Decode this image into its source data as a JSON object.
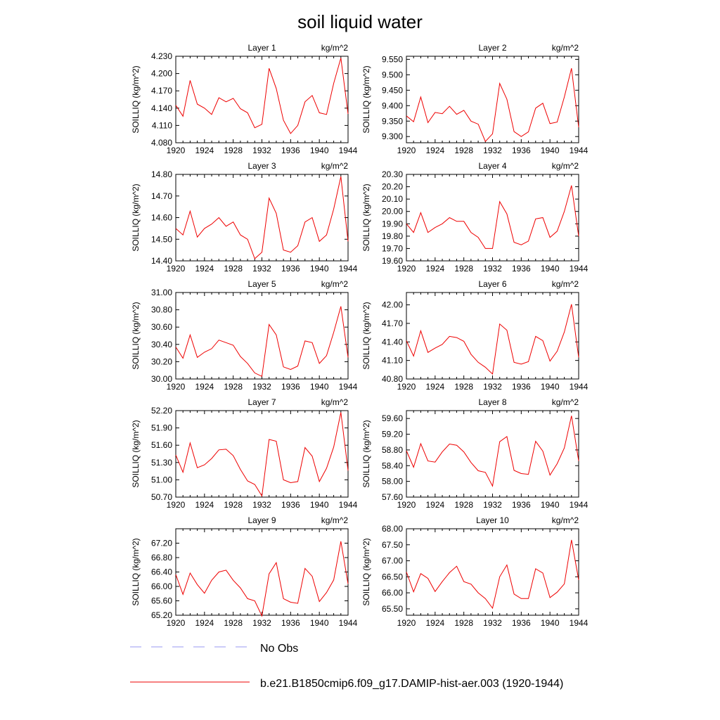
{
  "figure_title": "soil liquid water",
  "legend": {
    "entries": [
      {
        "label": "No Obs",
        "color": "#9a9af0",
        "style": "dashed"
      },
      {
        "label": "b.e21.B1850cmip6.f09_g17.DAMIP-hist-aer.003 (1920-1944)",
        "color": "#ee0000",
        "style": "solid"
      }
    ]
  },
  "chart_data": [
    {
      "type": "line",
      "title": "Layer 1",
      "units": "kg/m^2",
      "ylabel": "SOILLIQ  (kg/m^2)",
      "xlim": [
        1920,
        1944
      ],
      "xticks": [
        1920,
        1924,
        1928,
        1932,
        1936,
        1940,
        1944
      ],
      "ylim": [
        4.08,
        4.23
      ],
      "yticks": [
        "4.080",
        "4.110",
        "4.140",
        "4.170",
        "4.200",
        "4.230"
      ],
      "x": [
        1920,
        1921,
        1922,
        1923,
        1924,
        1925,
        1926,
        1927,
        1928,
        1929,
        1930,
        1931,
        1932,
        1933,
        1934,
        1935,
        1936,
        1937,
        1938,
        1939,
        1940,
        1941,
        1942,
        1943,
        1944
      ],
      "series": [
        {
          "values": [
            4.145,
            4.126,
            4.188,
            4.147,
            4.14,
            4.129,
            4.158,
            4.151,
            4.157,
            4.139,
            4.132,
            4.106,
            4.112,
            4.209,
            4.174,
            4.119,
            4.096,
            4.11,
            4.151,
            4.162,
            4.132,
            4.129,
            4.183,
            4.227,
            4.13
          ]
        }
      ]
    },
    {
      "type": "line",
      "title": "Layer 2",
      "units": "kg/m^2",
      "ylabel": "SOILLIQ  (kg/m^2)",
      "xlim": [
        1920,
        1944
      ],
      "xticks": [
        1920,
        1924,
        1928,
        1932,
        1936,
        1940,
        1944
      ],
      "ylim": [
        9.28,
        9.56
      ],
      "yticks": [
        "9.300",
        "9.350",
        "9.400",
        "9.450",
        "9.500",
        "9.550"
      ],
      "x": [
        1920,
        1921,
        1922,
        1923,
        1924,
        1925,
        1926,
        1927,
        1928,
        1929,
        1930,
        1931,
        1932,
        1933,
        1934,
        1935,
        1936,
        1937,
        1938,
        1939,
        1940,
        1941,
        1942,
        1943,
        1944
      ],
      "series": [
        {
          "values": [
            9.367,
            9.348,
            9.428,
            9.345,
            9.378,
            9.374,
            9.398,
            9.372,
            9.385,
            9.35,
            9.34,
            9.284,
            9.309,
            9.472,
            9.421,
            9.316,
            9.3,
            9.315,
            9.392,
            9.408,
            9.342,
            9.347,
            9.428,
            9.521,
            9.33
          ]
        }
      ]
    },
    {
      "type": "line",
      "title": "Layer 3",
      "units": "kg/m^2",
      "ylabel": "SOILLIQ  (kg/m^2)",
      "xlim": [
        1920,
        1944
      ],
      "xticks": [
        1920,
        1924,
        1928,
        1932,
        1936,
        1940,
        1944
      ],
      "ylim": [
        14.4,
        14.8
      ],
      "yticks": [
        "14.40",
        "14.50",
        "14.60",
        "14.70",
        "14.80"
      ],
      "x": [
        1920,
        1921,
        1922,
        1923,
        1924,
        1925,
        1926,
        1927,
        1928,
        1929,
        1930,
        1931,
        1932,
        1933,
        1934,
        1935,
        1936,
        1937,
        1938,
        1939,
        1940,
        1941,
        1942,
        1943,
        1944
      ],
      "series": [
        {
          "values": [
            14.55,
            14.52,
            14.63,
            14.51,
            14.55,
            14.57,
            14.6,
            14.56,
            14.58,
            14.52,
            14.5,
            14.41,
            14.44,
            14.69,
            14.62,
            14.45,
            14.44,
            14.47,
            14.58,
            14.6,
            14.49,
            14.52,
            14.64,
            14.79,
            14.49
          ]
        }
      ]
    },
    {
      "type": "line",
      "title": "Layer 4",
      "units": "kg/m^2",
      "ylabel": "SOILLIQ  (kg/m^2)",
      "xlim": [
        1920,
        1944
      ],
      "xticks": [
        1920,
        1924,
        1928,
        1932,
        1936,
        1940,
        1944
      ],
      "ylim": [
        19.6,
        20.3
      ],
      "yticks": [
        "19.60",
        "19.70",
        "19.80",
        "19.90",
        "20.00",
        "20.10",
        "20.20",
        "20.30"
      ],
      "x": [
        1920,
        1921,
        1922,
        1923,
        1924,
        1925,
        1926,
        1927,
        1928,
        1929,
        1930,
        1931,
        1932,
        1933,
        1934,
        1935,
        1936,
        1937,
        1938,
        1939,
        1940,
        1941,
        1942,
        1943,
        1944
      ],
      "series": [
        {
          "values": [
            19.9,
            19.83,
            19.99,
            19.83,
            19.87,
            19.9,
            19.95,
            19.92,
            19.92,
            19.83,
            19.79,
            19.7,
            19.7,
            20.08,
            19.98,
            19.75,
            19.73,
            19.76,
            19.94,
            19.95,
            19.79,
            19.84,
            20.0,
            20.21,
            19.8
          ]
        }
      ]
    },
    {
      "type": "line",
      "title": "Layer 5",
      "units": "kg/m^2",
      "ylabel": "SOILLIQ  (kg/m^2)",
      "xlim": [
        1920,
        1944
      ],
      "xticks": [
        1920,
        1924,
        1928,
        1932,
        1936,
        1940,
        1944
      ],
      "ylim": [
        30.0,
        31.0
      ],
      "yticks": [
        "30.00",
        "30.20",
        "30.40",
        "30.60",
        "30.80",
        "31.00"
      ],
      "x": [
        1920,
        1921,
        1922,
        1923,
        1924,
        1925,
        1926,
        1927,
        1928,
        1929,
        1930,
        1931,
        1932,
        1933,
        1934,
        1935,
        1936,
        1937,
        1938,
        1939,
        1940,
        1941,
        1942,
        1943,
        1944
      ],
      "series": [
        {
          "values": [
            30.37,
            30.24,
            30.51,
            30.25,
            30.31,
            30.35,
            30.45,
            30.42,
            30.39,
            30.26,
            30.18,
            30.07,
            30.03,
            30.63,
            30.51,
            30.14,
            30.11,
            30.15,
            30.44,
            30.42,
            30.18,
            30.27,
            30.54,
            30.84,
            30.25
          ]
        }
      ]
    },
    {
      "type": "line",
      "title": "Layer 6",
      "units": "kg/m^2",
      "ylabel": "SOILLIQ  (kg/m^2)",
      "xlim": [
        1920,
        1944
      ],
      "xticks": [
        1920,
        1924,
        1928,
        1932,
        1936,
        1940,
        1944
      ],
      "ylim": [
        40.8,
        42.2
      ],
      "yticks": [
        "40.80",
        "41.10",
        "41.40",
        "41.70",
        "42.00"
      ],
      "x": [
        1920,
        1921,
        1922,
        1923,
        1924,
        1925,
        1926,
        1927,
        1928,
        1929,
        1930,
        1931,
        1932,
        1933,
        1934,
        1935,
        1936,
        1937,
        1938,
        1939,
        1940,
        1941,
        1942,
        1943,
        1944
      ],
      "series": [
        {
          "values": [
            41.42,
            41.17,
            41.58,
            41.23,
            41.3,
            41.36,
            41.49,
            41.47,
            41.41,
            41.2,
            41.07,
            40.99,
            40.88,
            41.69,
            41.59,
            41.07,
            41.04,
            41.08,
            41.49,
            41.42,
            41.09,
            41.25,
            41.56,
            42.01,
            41.15
          ]
        }
      ]
    },
    {
      "type": "line",
      "title": "Layer 7",
      "units": "kg/m^2",
      "ylabel": "SOILLIQ  (kg/m^2)",
      "xlim": [
        1920,
        1944
      ],
      "xticks": [
        1920,
        1924,
        1928,
        1932,
        1936,
        1940,
        1944
      ],
      "ylim": [
        50.7,
        52.2
      ],
      "yticks": [
        "50.70",
        "51.00",
        "51.30",
        "51.60",
        "51.90",
        "52.20"
      ],
      "x": [
        1920,
        1921,
        1922,
        1923,
        1924,
        1925,
        1926,
        1927,
        1928,
        1929,
        1930,
        1931,
        1932,
        1933,
        1934,
        1935,
        1936,
        1937,
        1938,
        1939,
        1940,
        1941,
        1942,
        1943,
        1944
      ],
      "series": [
        {
          "values": [
            51.43,
            51.13,
            51.64,
            51.21,
            51.26,
            51.37,
            51.52,
            51.53,
            51.42,
            51.18,
            50.98,
            50.92,
            50.72,
            51.7,
            51.67,
            51.0,
            50.95,
            50.97,
            51.56,
            51.41,
            50.97,
            51.2,
            51.57,
            52.17,
            51.16
          ]
        }
      ]
    },
    {
      "type": "line",
      "title": "Layer 8",
      "units": "kg/m^2",
      "ylabel": "SOILLIQ  (kg/m^2)",
      "xlim": [
        1920,
        1944
      ],
      "xticks": [
        1920,
        1924,
        1928,
        1932,
        1936,
        1940,
        1944
      ],
      "ylim": [
        57.6,
        59.8
      ],
      "yticks": [
        "57.60",
        "58.00",
        "58.40",
        "58.80",
        "59.20",
        "59.60"
      ],
      "x": [
        1920,
        1921,
        1922,
        1923,
        1924,
        1925,
        1926,
        1927,
        1928,
        1929,
        1930,
        1931,
        1932,
        1933,
        1934,
        1935,
        1936,
        1937,
        1938,
        1939,
        1940,
        1941,
        1942,
        1943,
        1944
      ],
      "series": [
        {
          "values": [
            58.78,
            58.36,
            58.96,
            58.52,
            58.49,
            58.75,
            58.95,
            58.92,
            58.75,
            58.48,
            58.27,
            58.23,
            57.88,
            59.01,
            59.14,
            58.28,
            58.2,
            58.18,
            59.02,
            58.77,
            58.16,
            58.45,
            58.85,
            59.67,
            58.52
          ]
        }
      ]
    },
    {
      "type": "line",
      "title": "Layer 9",
      "units": "kg/m^2",
      "ylabel": "SOILLIQ  (kg/m^2)",
      "xlim": [
        1920,
        1944
      ],
      "xticks": [
        1920,
        1924,
        1928,
        1932,
        1936,
        1940,
        1944
      ],
      "ylim": [
        65.2,
        67.6
      ],
      "yticks": [
        "65.20",
        "65.60",
        "66.00",
        "66.40",
        "66.80",
        "67.20"
      ],
      "x": [
        1920,
        1921,
        1922,
        1923,
        1924,
        1925,
        1926,
        1927,
        1928,
        1929,
        1930,
        1931,
        1932,
        1933,
        1934,
        1935,
        1936,
        1937,
        1938,
        1939,
        1940,
        1941,
        1942,
        1943,
        1944
      ],
      "series": [
        {
          "values": [
            66.33,
            65.78,
            66.37,
            66.05,
            65.81,
            66.17,
            66.4,
            66.45,
            66.17,
            65.96,
            65.66,
            65.6,
            65.18,
            66.35,
            66.66,
            65.66,
            65.56,
            65.53,
            66.5,
            66.28,
            65.58,
            65.83,
            66.18,
            67.25,
            66.07
          ]
        }
      ]
    },
    {
      "type": "line",
      "title": "Layer 10",
      "units": "kg/m^2",
      "ylabel": "SOILLIQ  (kg/m^2)",
      "xlim": [
        1920,
        1944
      ],
      "xticks": [
        1920,
        1924,
        1928,
        1932,
        1936,
        1940,
        1944
      ],
      "ylim": [
        65.3,
        68.0
      ],
      "yticks": [
        "65.50",
        "66.00",
        "66.50",
        "67.00",
        "67.50",
        "68.00"
      ],
      "x": [
        1920,
        1921,
        1922,
        1923,
        1924,
        1925,
        1926,
        1927,
        1928,
        1929,
        1930,
        1931,
        1932,
        1933,
        1934,
        1935,
        1936,
        1937,
        1938,
        1939,
        1940,
        1941,
        1942,
        1943,
        1944
      ],
      "series": [
        {
          "values": [
            66.65,
            66.03,
            66.6,
            66.45,
            66.04,
            66.35,
            66.63,
            66.83,
            66.35,
            66.27,
            66.0,
            65.82,
            65.52,
            66.5,
            66.87,
            65.96,
            65.82,
            65.82,
            66.75,
            66.62,
            65.85,
            66.02,
            66.28,
            67.65,
            66.4
          ]
        }
      ]
    }
  ]
}
